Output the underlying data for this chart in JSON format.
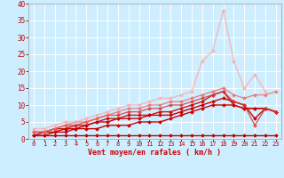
{
  "title": "",
  "xlabel": "Vent moyen/en rafales ( km/h )",
  "ylabel": "",
  "xlim": [
    -0.5,
    23.5
  ],
  "ylim": [
    0,
    40
  ],
  "yticks": [
    0,
    5,
    10,
    15,
    20,
    25,
    30,
    35,
    40
  ],
  "xticks": [
    0,
    1,
    2,
    3,
    4,
    5,
    6,
    7,
    8,
    9,
    10,
    11,
    12,
    13,
    14,
    15,
    16,
    17,
    18,
    19,
    20,
    21,
    22,
    23
  ],
  "bg_color": "#cceeff",
  "grid_color": "#ffffff",
  "lines": [
    {
      "x": [
        0,
        1,
        2,
        3,
        4,
        5,
        6,
        7,
        8,
        9,
        10,
        11,
        12,
        13,
        14,
        15,
        16,
        17,
        18,
        19,
        20,
        21,
        22,
        23
      ],
      "y": [
        1,
        1,
        1,
        1,
        1,
        1,
        1,
        1,
        1,
        1,
        1,
        1,
        1,
        1,
        1,
        1,
        1,
        1,
        1,
        1,
        1,
        1,
        1,
        1
      ],
      "color": "#bb0000",
      "lw": 1.0,
      "ms": 2.0,
      "alpha": 1.0
    },
    {
      "x": [
        0,
        1,
        2,
        3,
        4,
        5,
        6,
        7,
        8,
        9,
        10,
        11,
        12,
        13,
        14,
        15,
        16,
        17,
        18,
        19,
        20,
        21,
        22,
        23
      ],
      "y": [
        1,
        1,
        2,
        2,
        3,
        3,
        3,
        4,
        4,
        4,
        5,
        5,
        5,
        6,
        7,
        8,
        9,
        10,
        10,
        10,
        9,
        9,
        9,
        8
      ],
      "color": "#cc0000",
      "lw": 1.0,
      "ms": 2.0,
      "alpha": 1.0
    },
    {
      "x": [
        0,
        1,
        2,
        3,
        4,
        5,
        6,
        7,
        8,
        9,
        10,
        11,
        12,
        13,
        14,
        15,
        16,
        17,
        18,
        19,
        20,
        21,
        22,
        23
      ],
      "y": [
        1,
        2,
        2,
        3,
        3,
        4,
        5,
        5,
        6,
        6,
        6,
        7,
        7,
        7,
        8,
        9,
        10,
        11,
        12,
        11,
        10,
        6,
        9,
        8
      ],
      "color": "#cc0000",
      "lw": 1.0,
      "ms": 2.0,
      "alpha": 1.0
    },
    {
      "x": [
        0,
        1,
        2,
        3,
        4,
        5,
        6,
        7,
        8,
        9,
        10,
        11,
        12,
        13,
        14,
        15,
        16,
        17,
        18,
        19,
        20,
        21,
        22,
        23
      ],
      "y": [
        2,
        2,
        3,
        3,
        4,
        4,
        5,
        6,
        6,
        7,
        7,
        7,
        8,
        8,
        9,
        10,
        11,
        13,
        14,
        10,
        9,
        9,
        9,
        8
      ],
      "color": "#cc0000",
      "lw": 1.0,
      "ms": 2.0,
      "alpha": 0.9
    },
    {
      "x": [
        0,
        1,
        2,
        3,
        4,
        5,
        6,
        7,
        8,
        9,
        10,
        11,
        12,
        13,
        14,
        15,
        16,
        17,
        18,
        19,
        20,
        21,
        22,
        23
      ],
      "y": [
        2,
        2,
        3,
        4,
        4,
        5,
        6,
        7,
        7,
        8,
        8,
        9,
        9,
        10,
        10,
        11,
        12,
        13,
        14,
        11,
        10,
        4,
        9,
        8
      ],
      "color": "#dd3333",
      "lw": 1.0,
      "ms": 2.0,
      "alpha": 0.8
    },
    {
      "x": [
        0,
        1,
        2,
        3,
        4,
        5,
        6,
        7,
        8,
        9,
        10,
        11,
        12,
        13,
        14,
        15,
        16,
        17,
        18,
        19,
        20,
        21,
        22,
        23
      ],
      "y": [
        2,
        2,
        3,
        4,
        5,
        5,
        6,
        7,
        8,
        9,
        9,
        10,
        10,
        11,
        11,
        12,
        13,
        14,
        15,
        13,
        12,
        13,
        13,
        14
      ],
      "color": "#ee6666",
      "lw": 1.0,
      "ms": 2.0,
      "alpha": 0.75
    },
    {
      "x": [
        0,
        1,
        2,
        3,
        4,
        5,
        6,
        7,
        8,
        9,
        10,
        11,
        12,
        13,
        14,
        15,
        16,
        17,
        18,
        19,
        20,
        21,
        22,
        23
      ],
      "y": [
        3,
        3,
        4,
        5,
        5,
        6,
        7,
        8,
        9,
        10,
        10,
        11,
        12,
        12,
        13,
        14,
        23,
        26,
        38,
        23,
        15,
        19,
        14,
        null
      ],
      "color": "#ffaaaa",
      "lw": 1.0,
      "ms": 2.0,
      "alpha": 0.8
    }
  ],
  "xlabel_color": "#cc0000",
  "xlabel_fontsize": 6.0,
  "tick_fontsize": 5.0,
  "ytick_fontsize": 5.5
}
